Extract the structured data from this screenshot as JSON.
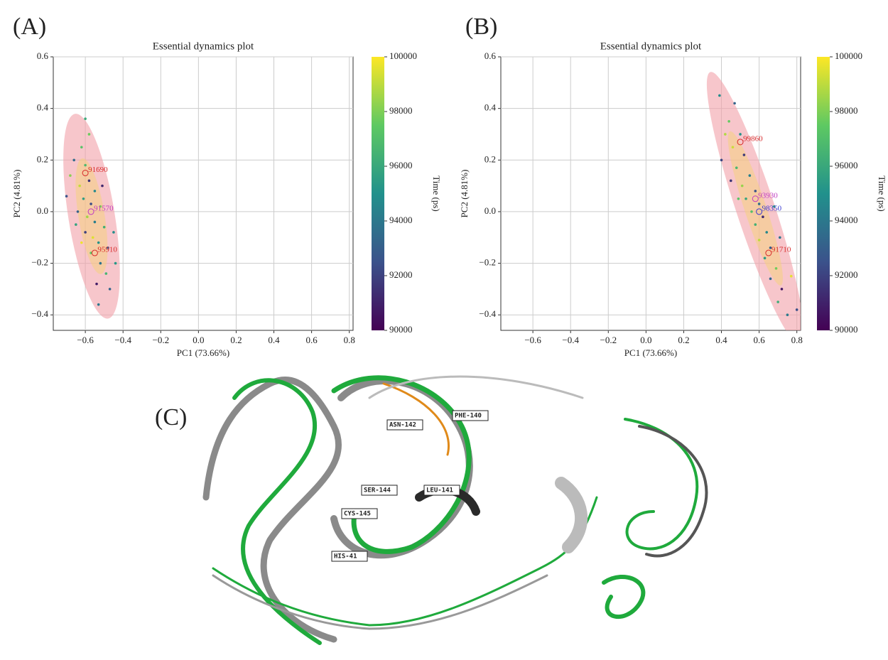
{
  "chart_data": [
    {
      "type": "scatter",
      "panel_label": "(A)",
      "title": "Essential dynamics plot",
      "x_label": "PC1 (73.66%)",
      "y_label": "PC2 (4.81%)",
      "colorbar_label": "Time (ps)",
      "colormap": "viridis",
      "grid": true,
      "xlim": [
        -0.77,
        0.82
      ],
      "ylim": [
        -0.46,
        0.6
      ],
      "clim": [
        90000,
        100000
      ],
      "xticks": [
        {
          "value": -0.6,
          "label": "−0.6"
        },
        {
          "value": -0.4,
          "label": "−0.4"
        },
        {
          "value": -0.2,
          "label": "−0.2"
        },
        {
          "value": 0,
          "label": "0.0"
        },
        0.2,
        0.4,
        0.6,
        0.8
      ],
      "yticks": [
        {
          "value": -0.4,
          "label": "−0.4"
        },
        {
          "value": -0.2,
          "label": "−0.2"
        },
        {
          "value": 0,
          "label": "0.0"
        },
        0.2,
        0.4,
        0.6
      ],
      "cticks": [
        90000,
        92000,
        94000,
        96000,
        98000,
        100000
      ],
      "x": [
        -0.62,
        -0.66,
        -0.6,
        -0.58,
        -0.63,
        -0.55,
        -0.61,
        -0.57,
        -0.52,
        -0.64,
        -0.59,
        -0.55,
        -0.5,
        -0.6,
        -0.56,
        -0.53,
        -0.48,
        -0.57,
        -0.52,
        -0.49,
        -0.54,
        -0.45,
        -0.68,
        -0.7,
        -0.65,
        -0.47,
        -0.58,
        -0.62,
        -0.51,
        -0.44,
        -0.6,
        -0.53
      ],
      "y": [
        0.25,
        0.2,
        0.18,
        0.12,
        0.1,
        0.08,
        0.05,
        0.03,
        0.02,
        0.0,
        -0.02,
        -0.04,
        -0.06,
        -0.08,
        -0.1,
        -0.12,
        -0.14,
        -0.16,
        -0.2,
        -0.24,
        -0.28,
        -0.08,
        0.14,
        0.06,
        -0.05,
        -0.3,
        0.3,
        -0.12,
        0.1,
        -0.2,
        0.36,
        -0.36
      ],
      "time": [
        97200,
        93500,
        96800,
        91500,
        99100,
        94700,
        95600,
        92300,
        97900,
        93100,
        98600,
        94200,
        96300,
        91900,
        99500,
        95100,
        92800,
        97400,
        93800,
        96600,
        90800,
        94900,
        98200,
        92600,
        95800,
        93300,
        97700,
        99800,
        91200,
        95300,
        96100,
        94000
      ],
      "annotations": [
        {
          "text": "91690",
          "x": -0.6,
          "y": 0.15,
          "color": "#d62728"
        },
        {
          "text": "91570",
          "x": -0.57,
          "y": 0.0,
          "color": "#c03cc0"
        },
        {
          "text": "95910",
          "x": -0.55,
          "y": -0.16,
          "color": "#d62728"
        }
      ]
    },
    {
      "type": "scatter",
      "panel_label": "(B)",
      "title": "Essential dynamics plot",
      "x_label": "PC1 (73.66%)",
      "y_label": "PC2 (4.81%)",
      "colorbar_label": "Time (ps)",
      "colormap": "viridis",
      "grid": true,
      "xlim": [
        -0.77,
        0.82
      ],
      "ylim": [
        -0.46,
        0.6
      ],
      "clim": [
        90000,
        100000
      ],
      "xticks": [
        {
          "value": -0.6,
          "label": "−0.6"
        },
        {
          "value": -0.4,
          "label": "−0.4"
        },
        {
          "value": -0.2,
          "label": "−0.2"
        },
        {
          "value": 0,
          "label": "0.0"
        },
        0.2,
        0.4,
        0.6,
        0.8
      ],
      "yticks": [
        {
          "value": -0.4,
          "label": "−0.4"
        },
        {
          "value": -0.2,
          "label": "−0.2"
        },
        {
          "value": 0,
          "label": "0.0"
        },
        0.2,
        0.4,
        0.6
      ],
      "cticks": [
        90000,
        92000,
        94000,
        96000,
        98000,
        100000
      ],
      "x": [
        0.47,
        0.44,
        0.5,
        0.46,
        0.52,
        0.48,
        0.55,
        0.51,
        0.58,
        0.53,
        0.6,
        0.56,
        0.62,
        0.58,
        0.64,
        0.6,
        0.66,
        0.63,
        0.69,
        0.66,
        0.72,
        0.7,
        0.75,
        0.42,
        0.4,
        0.68,
        0.71,
        0.49,
        0.45,
        0.77,
        0.39,
        0.8
      ],
      "y": [
        0.42,
        0.35,
        0.3,
        0.25,
        0.22,
        0.17,
        0.14,
        0.1,
        0.08,
        0.05,
        0.03,
        0.0,
        -0.02,
        -0.05,
        -0.08,
        -0.11,
        -0.14,
        -0.18,
        -0.22,
        -0.26,
        -0.3,
        -0.35,
        -0.4,
        0.3,
        0.2,
        0.02,
        -0.1,
        0.05,
        0.12,
        -0.25,
        0.45,
        -0.38
      ],
      "time": [
        93200,
        97600,
        95100,
        99200,
        91800,
        96700,
        94300,
        98400,
        92500,
        95900,
        93700,
        97100,
        91300,
        96400,
        94600,
        99000,
        92900,
        95400,
        97800,
        93400,
        90600,
        96200,
        94100,
        98800,
        92100,
        95700,
        93900,
        97300,
        91600,
        99600,
        94800,
        92400
      ],
      "annotations": [
        {
          "text": "99860",
          "x": 0.5,
          "y": 0.27,
          "color": "#d62728"
        },
        {
          "text": "93930",
          "x": 0.58,
          "y": 0.05,
          "color": "#c03cc0"
        },
        {
          "text": "98350",
          "x": 0.6,
          "y": 0.0,
          "color": "#3a3ad0"
        },
        {
          "text": "91710",
          "x": 0.65,
          "y": -0.16,
          "color": "#d62728"
        }
      ]
    }
  ],
  "structure": {
    "panel_label": "(C)",
    "residue_labels": [
      "PHE-140",
      "ASN-142",
      "SER-144",
      "LEU-141",
      "CYS-145",
      "HIS-41"
    ]
  }
}
